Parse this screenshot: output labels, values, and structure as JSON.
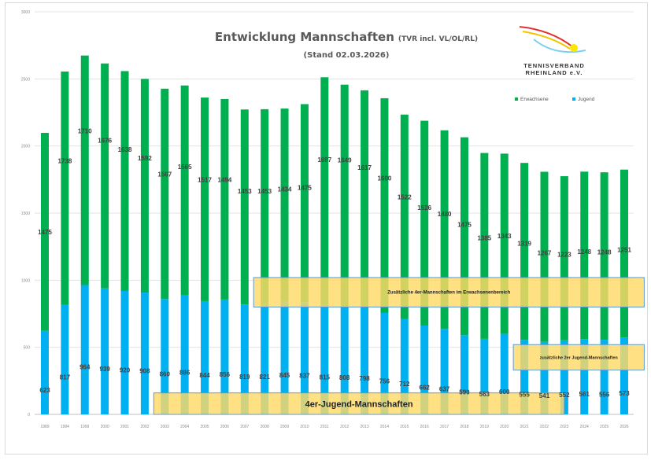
{
  "chart_data": {
    "type": "bar",
    "stacked": true,
    "title": "Entwicklung Mannschaften",
    "title_suffix": "(TVR incl. VL/OL/RL)",
    "subtitle": "(Stand 02.03.2026)",
    "logo_text": [
      "TENNISVERBAND",
      "RHEINLAND e.V."
    ],
    "xlabel": "",
    "ylabel": "",
    "ylim": [
      0,
      3000
    ],
    "yticks": [
      0,
      500,
      1000,
      1500,
      2000,
      2500,
      3000
    ],
    "grid": true,
    "legend_position": "top-right",
    "categories": [
      "1989",
      "1994",
      "1999",
      "2000",
      "2001",
      "2002",
      "2003",
      "2004",
      "2005",
      "2006",
      "2007",
      "2008",
      "2009",
      "2010",
      "2011",
      "2012",
      "2013",
      "2014",
      "2015",
      "2016",
      "2017",
      "2018",
      "2019",
      "2020",
      "2021",
      "2022",
      "2023",
      "2024",
      "2025",
      "2026"
    ],
    "series": [
      {
        "name": "Jugend",
        "color": "#00b0f0",
        "values": [
          623,
          817,
          964,
          939,
          920,
          908,
          860,
          886,
          844,
          856,
          819,
          821,
          845,
          837,
          815,
          808,
          798,
          756,
          712,
          662,
          637,
          590,
          563,
          600,
          555,
          541,
          552,
          561,
          556,
          573
        ]
      },
      {
        "name": "Erwachsene",
        "color": "#00b050",
        "values": [
          1475,
          1738,
          1710,
          1676,
          1638,
          1592,
          1567,
          1565,
          1517,
          1494,
          1453,
          1453,
          1434,
          1475,
          1697,
          1649,
          1617,
          1600,
          1522,
          1526,
          1480,
          1475,
          1385,
          1343,
          1319,
          1267,
          1223,
          1248,
          1248,
          1251
        ]
      }
    ],
    "annotations": [
      {
        "text": "Zusätzliche 4er-Mannschaften im Erwachsenenbereich",
        "from": "2008",
        "to": "2026",
        "level": [
          800,
          1020
        ]
      },
      {
        "text": "zusätzliche 2er Jugend-Mannschaften",
        "from": "2021",
        "to": "2026",
        "level": [
          330,
          520
        ]
      },
      {
        "text": "4er-Jugend-Mannschaften",
        "from": "2003",
        "to": "2022",
        "level": [
          0,
          160
        ]
      }
    ],
    "annotation_color": "#ffd966"
  }
}
